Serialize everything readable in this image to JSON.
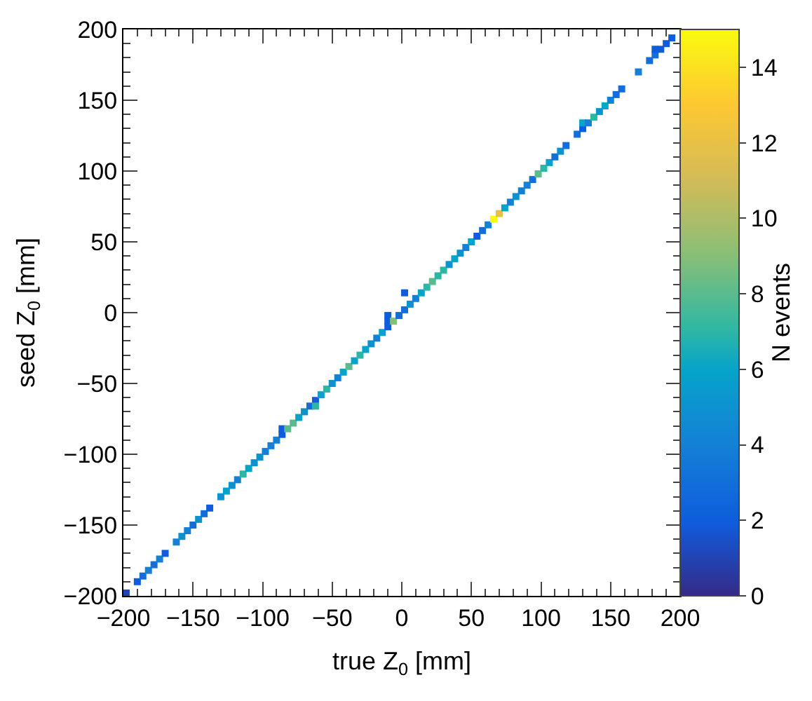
{
  "chart_data": {
    "type": "scatter",
    "marker": "square",
    "xlabel": "true Z$_{0}$ [mm]",
    "ylabel": "seed Z$_{0}$ [mm]",
    "clabel": "N events",
    "x": [
      -198,
      -190,
      -186,
      -182,
      -178,
      -174,
      -170,
      -162,
      -158,
      -154,
      -150,
      -146,
      -142,
      -138,
      -130,
      -126,
      -122,
      -118,
      -114,
      -110,
      -106,
      -102,
      -98,
      -94,
      -90,
      -86,
      -86,
      -82,
      -78,
      -74,
      -70,
      -66,
      -62,
      -62,
      -58,
      -54,
      -50,
      -46,
      -42,
      -38,
      -34,
      -30,
      -26,
      -22,
      -18,
      -14,
      -10,
      -10,
      -10,
      -6,
      -2,
      2,
      2,
      6,
      10,
      14,
      18,
      22,
      26,
      30,
      34,
      38,
      42,
      46,
      50,
      54,
      58,
      62,
      66,
      70,
      74,
      78,
      82,
      86,
      90,
      94,
      98,
      102,
      106,
      110,
      114,
      118,
      126,
      130,
      130,
      134,
      138,
      142,
      146,
      150,
      154,
      158,
      170,
      178,
      182,
      182,
      186,
      190,
      194
    ],
    "values": [
      -198,
      -190,
      -186,
      -182,
      -178,
      -174,
      -170,
      -162,
      -158,
      -154,
      -150,
      -146,
      -142,
      -138,
      -130,
      -126,
      -122,
      -118,
      -114,
      -110,
      -106,
      -102,
      -98,
      -94,
      -90,
      -86,
      -82,
      -82,
      -78,
      -74,
      -70,
      -66,
      -62,
      -66,
      -58,
      -54,
      -50,
      -46,
      -42,
      -38,
      -34,
      -30,
      -26,
      -22,
      -18,
      -14,
      -10,
      -2,
      -6,
      -6,
      -2,
      2,
      14,
      6,
      10,
      14,
      18,
      22,
      26,
      30,
      34,
      38,
      42,
      46,
      50,
      54,
      58,
      62,
      66,
      70,
      74,
      78,
      82,
      86,
      90,
      94,
      98,
      102,
      106,
      110,
      114,
      118,
      126,
      130,
      134,
      134,
      138,
      142,
      146,
      150,
      154,
      158,
      170,
      178,
      182,
      186,
      186,
      190,
      194
    ],
    "cvalues": [
      1,
      2,
      3,
      4,
      3,
      4,
      2,
      4,
      5,
      4,
      3,
      5,
      3,
      2,
      5,
      6,
      5,
      4,
      7,
      6,
      5,
      5,
      4,
      4,
      4,
      2,
      2,
      8,
      8,
      6,
      5,
      3,
      2,
      7,
      6,
      7,
      5,
      4,
      6,
      8,
      6,
      7,
      6,
      5,
      4,
      6,
      2,
      2,
      2,
      9,
      3,
      3,
      2,
      5,
      4,
      6,
      7,
      8,
      7,
      7,
      5,
      6,
      5,
      4,
      6,
      2,
      3,
      4,
      15,
      12,
      6,
      4,
      5,
      4,
      4,
      3,
      8,
      7,
      6,
      3,
      5,
      3,
      3,
      2,
      6,
      4,
      7,
      5,
      6,
      4,
      3,
      3,
      4,
      3,
      3,
      2,
      2,
      2,
      2
    ],
    "xlim": [
      -200,
      200
    ],
    "xticks": [
      -200,
      -150,
      -100,
      -50,
      0,
      50,
      100,
      150,
      200
    ],
    "ylim": [
      -200,
      200
    ],
    "yticks": [
      -200,
      -150,
      -100,
      -50,
      0,
      50,
      100,
      150,
      200
    ],
    "clim": [
      0,
      15
    ],
    "cticks": [
      0,
      2,
      4,
      6,
      8,
      10,
      12,
      14
    ],
    "grid": false,
    "legend": false
  }
}
